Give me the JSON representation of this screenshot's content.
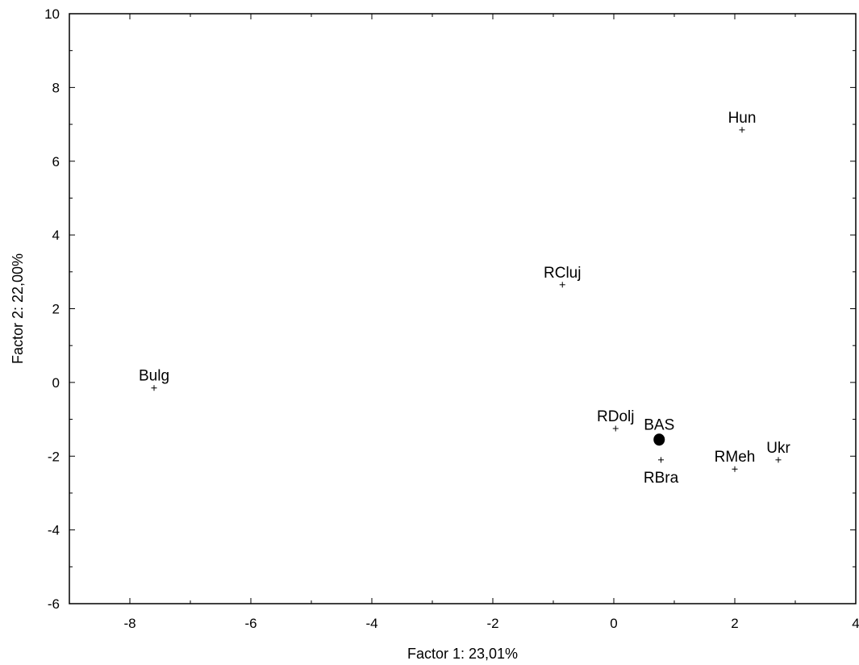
{
  "chart_data": {
    "type": "scatter",
    "title": "",
    "xlabel": "Factor 1: 23,01%",
    "ylabel": "Factor 2: 22,00%",
    "xlim": [
      -9,
      4
    ],
    "ylim": [
      -6,
      10
    ],
    "xticks": [
      -8,
      -6,
      -4,
      -2,
      0,
      2,
      4
    ],
    "yticks": [
      -6,
      -4,
      -2,
      0,
      2,
      4,
      6,
      8,
      10
    ],
    "grid": false,
    "points": [
      {
        "label": "Hun",
        "x": 2.12,
        "y": 6.85,
        "marker": "plus",
        "label_pos": "above"
      },
      {
        "label": "RCluj",
        "x": -0.85,
        "y": 2.65,
        "marker": "plus",
        "label_pos": "above"
      },
      {
        "label": "Bulg",
        "x": -7.6,
        "y": -0.15,
        "marker": "plus",
        "label_pos": "above"
      },
      {
        "label": "RDolj",
        "x": 0.03,
        "y": -1.25,
        "marker": "plus",
        "label_pos": "above"
      },
      {
        "label": "BAS",
        "x": 0.75,
        "y": -1.55,
        "marker": "dot",
        "label_pos": "above"
      },
      {
        "label": "RBra",
        "x": 0.78,
        "y": -2.1,
        "marker": "plus",
        "label_pos": "below"
      },
      {
        "label": "RMeh",
        "x": 2.0,
        "y": -2.35,
        "marker": "plus",
        "label_pos": "above"
      },
      {
        "label": "Ukr",
        "x": 2.72,
        "y": -2.1,
        "marker": "plus",
        "label_pos": "above"
      }
    ]
  }
}
